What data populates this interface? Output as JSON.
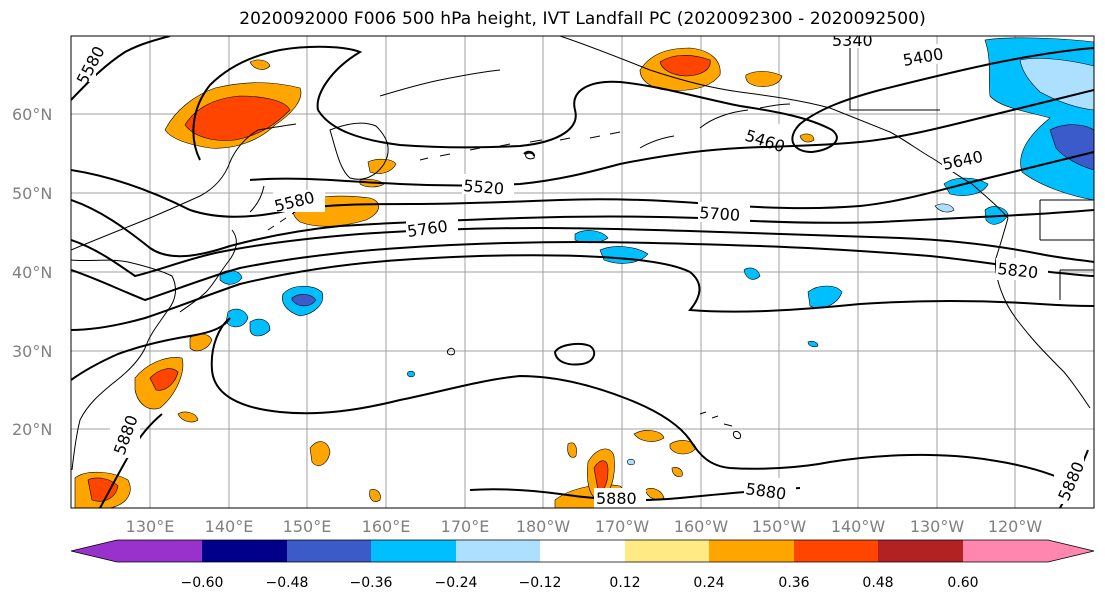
{
  "title": "2020092000 F006 500 hPa height, IVT Landfall PC (2020092300 - 2020092500)",
  "lat_labels": [
    "60°N",
    "50°N",
    "40°N",
    "30°N",
    "20°N"
  ],
  "lon_labels": [
    "130°E",
    "140°E",
    "150°E",
    "160°E",
    "170°E",
    "180°W",
    "170°W",
    "160°W",
    "150°W",
    "140°W",
    "130°W",
    "120°W"
  ],
  "contour_labels": [
    "5580",
    "5340",
    "5400",
    "5460",
    "5520",
    "5580",
    "5640",
    "5700",
    "5760",
    "5820",
    "5880",
    "5880",
    "5880",
    "5880"
  ],
  "colorbar": {
    "ticks": [
      "−0.60",
      "−0.48",
      "−0.36",
      "−0.24",
      "−0.12",
      "0.12",
      "0.24",
      "0.36",
      "0.48",
      "0.60"
    ],
    "colors": [
      "#9932CC",
      "#00008B",
      "#3A5BC9",
      "#00BFFF",
      "#ADDFFF",
      "#FFFFFF",
      "#FFEA84",
      "#FFA500",
      "#FF4500",
      "#B22222",
      "#FF86AE"
    ]
  }
}
